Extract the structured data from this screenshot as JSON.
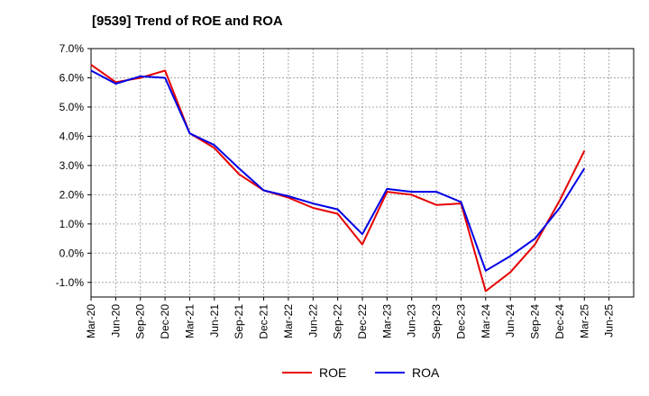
{
  "chart_data": {
    "type": "line",
    "title": "[9539]  Trend of ROE and ROA",
    "xlabel": "",
    "ylabel": "",
    "categories": [
      "Mar-20",
      "Jun-20",
      "Sep-20",
      "Dec-20",
      "Mar-21",
      "Jun-21",
      "Sep-21",
      "Dec-21",
      "Mar-22",
      "Jun-22",
      "Sep-22",
      "Dec-22",
      "Mar-23",
      "Jun-23",
      "Sep-23",
      "Dec-23",
      "Mar-24",
      "Jun-24",
      "Sep-24",
      "Dec-24",
      "Mar-25",
      "Jun-25"
    ],
    "y_ticks": [
      "7.0%",
      "6.0%",
      "5.0%",
      "4.0%",
      "3.0%",
      "2.0%",
      "1.0%",
      "0.0%",
      "-1.0%"
    ],
    "ylim": [
      -1.5,
      7.0
    ],
    "grid": true,
    "legend_position": "bottom",
    "series": [
      {
        "name": "ROE",
        "color": "#e60000",
        "values": [
          6.45,
          5.85,
          6.0,
          6.25,
          4.1,
          3.6,
          2.7,
          2.15,
          1.9,
          1.55,
          1.35,
          0.3,
          2.1,
          2.0,
          1.65,
          1.7,
          -1.3,
          -0.65,
          0.3,
          1.8,
          3.5,
          null
        ]
      },
      {
        "name": "ROA",
        "color": "#0000e6",
        "values": [
          6.25,
          5.8,
          6.05,
          6.0,
          4.1,
          3.7,
          2.9,
          2.15,
          1.95,
          1.7,
          1.5,
          0.65,
          2.2,
          2.1,
          2.1,
          1.75,
          -0.6,
          -0.1,
          0.5,
          1.55,
          2.9,
          null
        ]
      }
    ]
  }
}
